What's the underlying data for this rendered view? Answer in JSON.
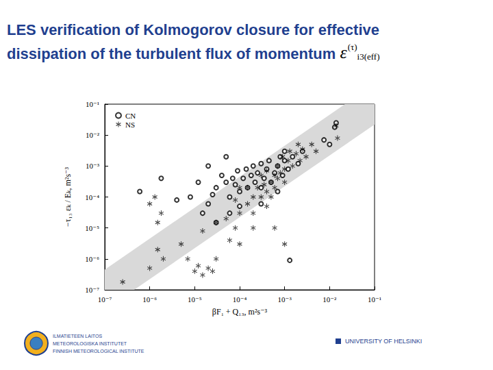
{
  "chart_data": {
    "type": "scatter",
    "title": [
      "LES verification of Kolmogorov closure for effective",
      "dissipation of the turbulent flux of momentum"
    ],
    "title_symbol": {
      "base": "ε",
      "sup": "(τ)",
      "sub": "i3(eff)"
    },
    "x_label": "βF₁ + Q₁₃, m²s⁻³",
    "y_label": "−τ₁₃ εₖ / Eₖ, m²s⁻³",
    "log": true,
    "grid": false,
    "legend": "upper left",
    "xlim": [
      1e-07,
      0.1
    ],
    "ylim": [
      1e-07,
      0.1
    ],
    "xticks": [
      {
        "value": 1e-07,
        "label": "10⁻⁷"
      },
      {
        "value": 1e-06,
        "label": "10⁻⁶"
      },
      {
        "value": 1e-05,
        "label": "10⁻⁵"
      },
      {
        "value": 0.0001,
        "label": "10⁻⁴"
      },
      {
        "value": 0.001,
        "label": "10⁻³"
      },
      {
        "value": 0.01,
        "label": "10⁻²"
      },
      {
        "value": 0.1,
        "label": "10⁻¹"
      }
    ],
    "yticks": [
      {
        "value": 1e-07,
        "label": "10⁻⁷"
      },
      {
        "value": 1e-06,
        "label": "10⁻⁶"
      },
      {
        "value": 1e-05,
        "label": "10⁻⁵"
      },
      {
        "value": 0.0001,
        "label": "10⁻⁴"
      },
      {
        "value": 0.001,
        "label": "10⁻³"
      },
      {
        "value": 0.01,
        "label": "10⁻²"
      },
      {
        "value": 0.1,
        "label": "10⁻¹"
      }
    ],
    "band": {
      "color": "#d9d9d9",
      "points": [
        [
          1e-07,
          1e-07
        ],
        [
          1e-07,
          4.5e-07
        ],
        [
          0.022,
          0.1
        ],
        [
          0.1,
          0.1
        ],
        [
          0.1,
          0.022
        ],
        [
          4.5e-07,
          1e-07
        ]
      ]
    },
    "series": [
      {
        "name": "CN",
        "color": "#000000",
        "marker": "open_circle",
        "values": [
          [
            1.8e-06,
            0.0004
          ],
          [
            4e-06,
            8e-05
          ],
          [
            6e-07,
            0.00015
          ],
          [
            1.2e-05,
            0.0003
          ],
          [
            2e-05,
            6e-05
          ],
          [
            2.5e-05,
            0.00012
          ],
          [
            3e-05,
            0.0002
          ],
          [
            4e-05,
            0.0005
          ],
          [
            5e-05,
            0.0003
          ],
          [
            6e-05,
            0.0001
          ],
          [
            7e-05,
            0.0004
          ],
          [
            8e-05,
            0.00025
          ],
          [
            9e-05,
            0.0007
          ],
          [
            0.0001,
            0.00015
          ],
          [
            0.00012,
            0.0004
          ],
          [
            0.00014,
            0.0008
          ],
          [
            0.00015,
            0.0002
          ],
          [
            0.00018,
            0.0005
          ],
          [
            0.0002,
            0.001
          ],
          [
            0.00022,
            0.0003
          ],
          [
            0.00025,
            0.0006
          ],
          [
            0.0003,
            0.0012
          ],
          [
            0.0003,
            0.0002
          ],
          [
            0.00035,
            0.0004
          ],
          [
            0.0004,
            0.0008
          ],
          [
            0.00045,
            0.0015
          ],
          [
            0.0005,
            0.0003
          ],
          [
            0.0006,
            0.0006
          ],
          [
            0.0007,
            0.001
          ],
          [
            0.0008,
            0.002
          ],
          [
            0.0009,
            0.0005
          ],
          [
            0.001,
            0.0015
          ],
          [
            0.0012,
            0.0008
          ],
          [
            0.0015,
            0.002
          ],
          [
            0.002,
            0.0012
          ],
          [
            1.5e-05,
            3e-05
          ],
          [
            3e-05,
            1.5e-05
          ],
          [
            6e-05,
            3e-05
          ],
          [
            0.0001,
            5e-05
          ],
          [
            8e-06,
            0.0001
          ],
          [
            0.0075,
            0.007
          ],
          [
            0.013,
            0.018
          ],
          [
            0.014,
            0.025
          ],
          [
            0.01,
            0.005
          ],
          [
            0.0013,
            9e-07
          ],
          [
            2e-05,
            0.001
          ],
          [
            5e-05,
            0.002
          ],
          [
            0.001,
            0.003
          ],
          [
            0.0025,
            0.003
          ],
          [
            0.0003,
            6e-05
          ],
          [
            0.0007,
            0.00015
          ]
        ]
      },
      {
        "name": "NS",
        "color": "#000000",
        "marker": "asterisk",
        "values": [
          [
            2.5e-07,
            1.8e-07
          ],
          [
            1e-06,
            5e-07
          ],
          [
            1.5e-06,
            2e-06
          ],
          [
            2e-06,
            1e-06
          ],
          [
            1e-06,
            6e-05
          ],
          [
            1.5e-06,
            1.5e-05
          ],
          [
            1.8e-06,
            3e-05
          ],
          [
            1.3e-06,
            0.0001
          ],
          [
            5e-06,
            3e-06
          ],
          [
            7e-06,
            1e-06
          ],
          [
            1e-05,
            4e-07
          ],
          [
            1.2e-05,
            6e-07
          ],
          [
            1.5e-05,
            3e-07
          ],
          [
            2e-05,
            5e-07
          ],
          [
            2.5e-05,
            4e-07
          ],
          [
            3e-05,
            1e-06
          ],
          [
            1.5e-05,
            8e-06
          ],
          [
            3e-05,
            1.5e-05
          ],
          [
            5e-05,
            2e-05
          ],
          [
            8e-05,
            1e-05
          ],
          [
            0.0001,
            3e-05
          ],
          [
            0.00015,
            6e-05
          ],
          [
            0.0002,
            0.0001
          ],
          [
            0.0002,
            3e-05
          ],
          [
            0.00025,
            0.0002
          ],
          [
            0.0003,
            0.0001
          ],
          [
            0.0003,
            0.0005
          ],
          [
            0.00035,
            0.00025
          ],
          [
            0.0004,
            0.00015
          ],
          [
            0.0004,
            0.0007
          ],
          [
            0.0005,
            0.0003
          ],
          [
            0.0005,
            0.0001
          ],
          [
            0.0006,
            0.0005
          ],
          [
            0.0006,
            0.0002
          ],
          [
            0.0007,
            0.001
          ],
          [
            0.0007,
            0.0004
          ],
          [
            0.0008,
            0.0006
          ],
          [
            0.0009,
            0.002
          ],
          [
            0.001,
            0.0008
          ],
          [
            0.001,
            0.0003
          ],
          [
            0.0012,
            0.0015
          ],
          [
            0.0013,
            0.003
          ],
          [
            0.0015,
            0.001
          ],
          [
            0.0018,
            0.0025
          ],
          [
            0.002,
            0.005
          ],
          [
            0.0022,
            0.0015
          ],
          [
            0.0025,
            0.0035
          ],
          [
            0.003,
            0.002
          ],
          [
            0.004,
            0.005
          ],
          [
            0.005,
            0.003
          ],
          [
            0.014,
            0.02
          ],
          [
            0.015,
            0.008
          ],
          [
            0.0004,
            5e-05
          ],
          [
            0.0006,
            1e-05
          ],
          [
            0.001,
            3e-06
          ],
          [
            0.0001,
            3e-06
          ],
          [
            0.0002,
            1e-05
          ],
          [
            6e-05,
            4e-06
          ],
          [
            0.00015,
            0.0002
          ],
          [
            8e-05,
            8e-05
          ],
          [
            0.0001,
            0.0002
          ]
        ]
      }
    ],
    "footer": {
      "left": [
        "ILMATIETEEN LAITOS",
        "METEOROLOGISKA INSTITUTET",
        "FINNISH METEOROLOGICAL INSTITUTE"
      ],
      "right": "UNIVERSITY OF HELSINKI"
    }
  }
}
